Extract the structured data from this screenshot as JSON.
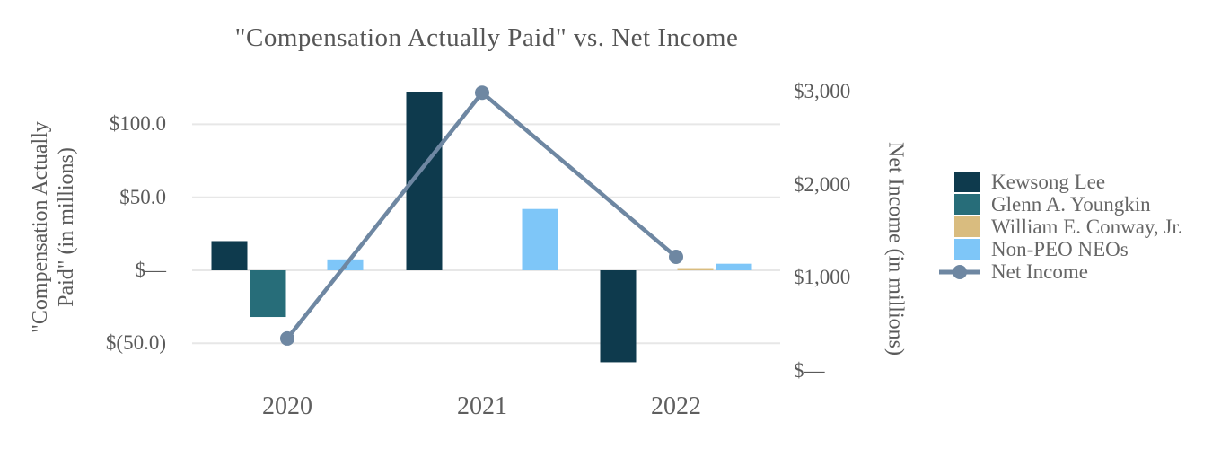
{
  "chart": {
    "title": "\"Compensation Actually Paid\" vs. Net Income",
    "left_axis": {
      "title_lines": [
        "\"Compensation Actually",
        "Paid\" (in millions)"
      ],
      "ticks": [
        {
          "value": 100,
          "label": "$100.0"
        },
        {
          "value": 50,
          "label": "$50.0"
        },
        {
          "value": 0,
          "label": "$—"
        },
        {
          "value": -50,
          "label": "$(50.0)"
        }
      ]
    },
    "right_axis": {
      "title": "Net Income (in millions)",
      "ticks": [
        {
          "value": 3000,
          "label": "$3,000"
        },
        {
          "value": 2000,
          "label": "$2,000"
        },
        {
          "value": 1000,
          "label": "$1,000"
        },
        {
          "value": 0,
          "label": "$—"
        }
      ]
    },
    "x_axis": {
      "categories": [
        "2020",
        "2021",
        "2022"
      ]
    }
  },
  "chart_data": {
    "type": "bar+line combo",
    "title": "\"Compensation Actually Paid\" vs. Net Income",
    "categories": [
      "2020",
      "2021",
      "2022"
    ],
    "left_axis_label": "\"Compensation Actually Paid\" (in millions)",
    "right_axis_label": "Net Income (in millions)",
    "left_ylim": [
      -50,
      100
    ],
    "right_ylim": [
      0,
      3000
    ],
    "grid": "horizontal-only",
    "legend_position": "right",
    "bar_series": [
      {
        "name": "Kewsong Lee",
        "color": "#0e3a4d",
        "axis": "left",
        "values": [
          20,
          122,
          -63
        ]
      },
      {
        "name": "Glenn A. Youngkin",
        "color": "#276d79",
        "axis": "left",
        "values": [
          -32,
          null,
          null
        ]
      },
      {
        "name": "William E. Conway, Jr.",
        "color": "#d9bc7f",
        "axis": "left",
        "values": [
          null,
          null,
          1.5
        ]
      },
      {
        "name": "Non-PEO NEOs",
        "color": "#7ec6f8",
        "axis": "left",
        "values": [
          7.5,
          42,
          4.5
        ]
      }
    ],
    "line_series": {
      "name": "Net Income",
      "color": "#6e87a2",
      "axis": "right",
      "marker": "circle",
      "values": [
        348,
        2988,
        1225
      ]
    },
    "colors": {
      "gridline": "#e7e7e7",
      "title_text": "#565656",
      "tick_text": "#5a5a5a"
    }
  }
}
